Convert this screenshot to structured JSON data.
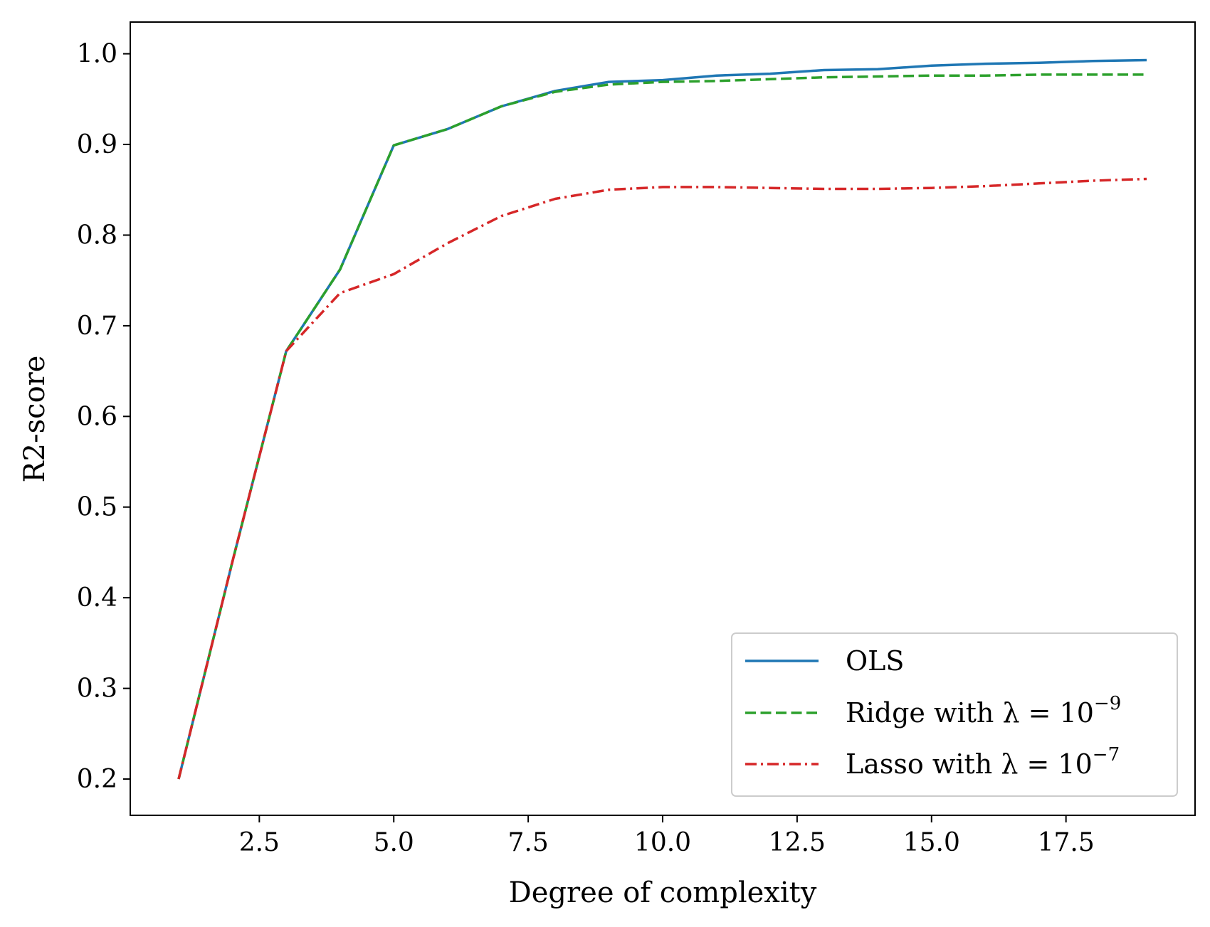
{
  "chart_data": {
    "type": "line",
    "xlabel": "Degree of complexity",
    "ylabel": "R2-score",
    "xlim": [
      0.1,
      19.9
    ],
    "ylim": [
      0.16,
      1.035
    ],
    "xticks": [
      2.5,
      5.0,
      7.5,
      10.0,
      12.5,
      15.0,
      17.5
    ],
    "xtick_labels": [
      "2.5",
      "5.0",
      "7.5",
      "10.0",
      "12.5",
      "15.0",
      "17.5"
    ],
    "yticks": [
      0.2,
      0.3,
      0.4,
      0.5,
      0.6,
      0.7,
      0.8,
      0.9,
      1.0
    ],
    "ytick_labels": [
      "0.2",
      "0.3",
      "0.4",
      "0.5",
      "0.6",
      "0.7",
      "0.8",
      "0.9",
      "1.0"
    ],
    "grid": false,
    "legend_position": "bottom-right",
    "x": [
      1,
      2,
      3,
      4,
      5,
      6,
      7,
      8,
      9,
      10,
      11,
      12,
      13,
      14,
      15,
      16,
      17,
      18,
      19
    ],
    "series": [
      {
        "name": "OLS",
        "color": "#1f77b4",
        "style": "solid",
        "values": [
          0.2,
          0.44,
          0.672,
          0.762,
          0.899,
          0.917,
          0.942,
          0.959,
          0.969,
          0.971,
          0.976,
          0.978,
          0.982,
          0.983,
          0.987,
          0.989,
          0.99,
          0.992,
          0.993
        ],
        "legend_text": "OLS",
        "legend_sup": ""
      },
      {
        "name": "Ridge with λ = 10⁻⁹",
        "color": "#2ca02c",
        "style": "dashed",
        "values": [
          0.2,
          0.44,
          0.672,
          0.762,
          0.899,
          0.917,
          0.942,
          0.958,
          0.966,
          0.969,
          0.97,
          0.972,
          0.974,
          0.975,
          0.976,
          0.976,
          0.977,
          0.977,
          0.977
        ],
        "legend_text": "Ridge with λ = 10",
        "legend_sup": "−9"
      },
      {
        "name": "Lasso with λ = 10⁻⁷",
        "color": "#d62728",
        "style": "dashdot",
        "values": [
          0.2,
          0.44,
          0.672,
          0.736,
          0.757,
          0.791,
          0.821,
          0.84,
          0.85,
          0.853,
          0.853,
          0.852,
          0.851,
          0.851,
          0.852,
          0.854,
          0.857,
          0.86,
          0.862
        ],
        "legend_text": "Lasso with λ = 10",
        "legend_sup": "−7"
      }
    ]
  }
}
